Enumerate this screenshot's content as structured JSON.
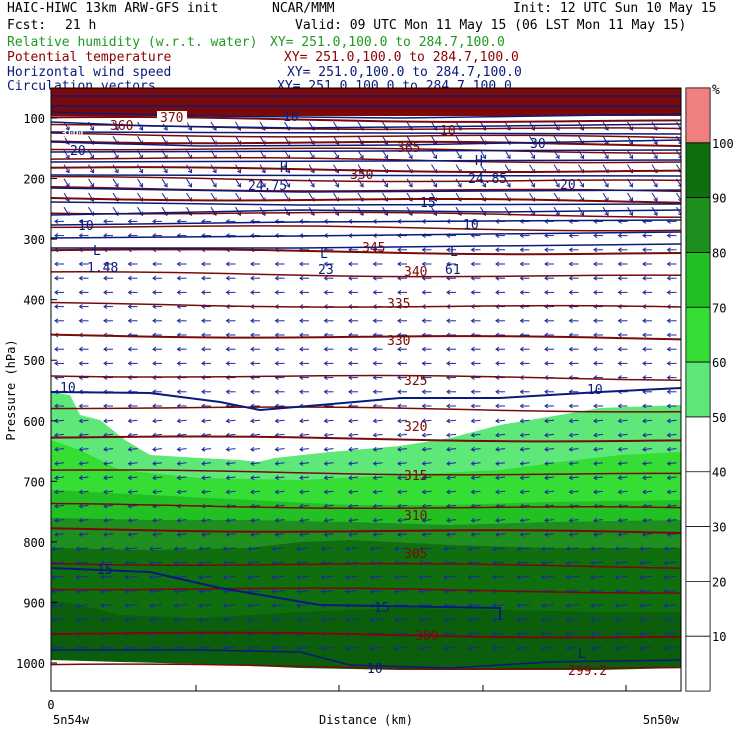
{
  "header": {
    "model_title": "HAIC-HIWC 13km ARW-GFS init",
    "org": "NCAR/MMM",
    "init": "Init: 12 UTC Sun 10 May 15",
    "fcst_label": "Fcst:",
    "fcst_value": "21 h",
    "valid": "Valid: 09 UTC Mon 11 May 15 (06 LST Mon 11 May 15)",
    "rh_title": "Relative humidity (w.r.t. water)",
    "rh_xy": "XY= 251.0,100.0 to 284.7,100.0",
    "pt_title": "Potential temperature",
    "pt_xy": "XY= 251.0,100.0 to 284.7,100.0",
    "ws_title": "Horizontal wind speed",
    "ws_xy": "XY= 251.0,100.0 to 284.7,100.0",
    "cv_title": "Circulation vectors",
    "cv_xy": "XY= 251.0,100.0 to 284.7,100.0"
  },
  "colors": {
    "rh_title": "#1f9a1f",
    "pt_title": "#8b0000",
    "ws_title": "#0a1a7a",
    "cv_title": "#0a1a7a",
    "theta_line": "#7a0a0a",
    "wind_line": "#0a1a7a",
    "vectors": "#1a2a9a"
  },
  "chart_data": {
    "type": "cross-section",
    "ylabel": "Pressure (hPa)",
    "xlabel": "Distance (km)",
    "y_ticks": [
      100,
      200,
      300,
      400,
      500,
      600,
      700,
      800,
      900,
      1000
    ],
    "x_ticks": [
      0
    ],
    "x_left_label": "5n54w",
    "x_right_label": "5n50w",
    "colorbar": {
      "unit": "%",
      "ticks": [
        10,
        20,
        30,
        40,
        50,
        60,
        70,
        80,
        90,
        100
      ],
      "bins": [
        {
          "min": 100,
          "max": 110,
          "color": "#f08080"
        },
        {
          "min": 90,
          "max": 100,
          "color": "#0f6f0f"
        },
        {
          "min": 80,
          "max": 90,
          "color": "#1e8e1e"
        },
        {
          "min": 70,
          "max": 80,
          "color": "#22c022"
        },
        {
          "min": 60,
          "max": 70,
          "color": "#35dd35"
        },
        {
          "min": 50,
          "max": 60,
          "color": "#5ee87a"
        },
        {
          "min": 0,
          "max": 50,
          "color": "#ffffff"
        }
      ]
    },
    "potential_temperature_labels": [
      {
        "value": "370",
        "x": 0.2,
        "p": 118
      },
      {
        "value": "365",
        "x": 0.46,
        "p": 140
      },
      {
        "value": "360",
        "x": 0.32,
        "p": 128
      },
      {
        "value": "350",
        "x": 0.5,
        "p": 178
      },
      {
        "value": "345",
        "x": 0.52,
        "p": 248
      },
      {
        "value": "340",
        "x": 0.58,
        "p": 273
      },
      {
        "value": "335",
        "x": 0.55,
        "p": 343
      },
      {
        "value": "330",
        "x": 0.55,
        "p": 415
      },
      {
        "value": "325",
        "x": 0.58,
        "p": 521
      },
      {
        "value": "320",
        "x": 0.58,
        "p": 630
      },
      {
        "value": "315",
        "x": 0.58,
        "p": 768
      },
      {
        "value": "310",
        "x": 0.58,
        "p": 902
      },
      {
        "value": "305",
        "x": 0.58,
        "p": 1091
      },
      {
        "value": "300",
        "x": 0.58,
        "p": 1394
      }
    ],
    "wind_speed_labels": [
      {
        "value": "10",
        "x": 0.56,
        "p": 123
      },
      {
        "value": "20",
        "x": 0.04,
        "p": 143
      },
      {
        "value": "30",
        "x": 0.77,
        "p": 148
      },
      {
        "value": "20",
        "x": 0.84,
        "p": 185
      },
      {
        "value": "15",
        "x": 0.56,
        "p": 212
      },
      {
        "value": "10",
        "x": 0.06,
        "p": 250
      },
      {
        "value": "10",
        "x": 0.62,
        "p": 250
      },
      {
        "value": "10",
        "x": 0.02,
        "p": 545
      },
      {
        "value": "10",
        "x": 0.8,
        "p": 545
      },
      {
        "value": "15",
        "x": 0.08,
        "p": 1005
      },
      {
        "value": "15",
        "x": 0.48,
        "p": 1200
      },
      {
        "value": "10",
        "x": 0.47,
        "p": 1700
      }
    ],
    "extrema": [
      {
        "type": "H",
        "value": "24.75",
        "x": 0.34,
        "p": 170
      },
      {
        "type": "H",
        "value": "24.85",
        "x": 0.63,
        "p": 165
      },
      {
        "type": "L",
        "value": "1.48",
        "x": 0.07,
        "p": 278
      },
      {
        "type": "L",
        "value": "23",
        "x": 0.41,
        "p": 278
      },
      {
        "type": "L",
        "value": "61",
        "x": 0.61,
        "p": 278
      },
      {
        "type": "L",
        "value": "299.2",
        "x": 0.82,
        "p": 1650
      }
    ],
    "misc_labels": [
      {
        "value": "300",
        "x": 0.04,
        "p": 123
      },
      {
        "value": "10",
        "x": 0.61,
        "p": 125
      }
    ]
  }
}
